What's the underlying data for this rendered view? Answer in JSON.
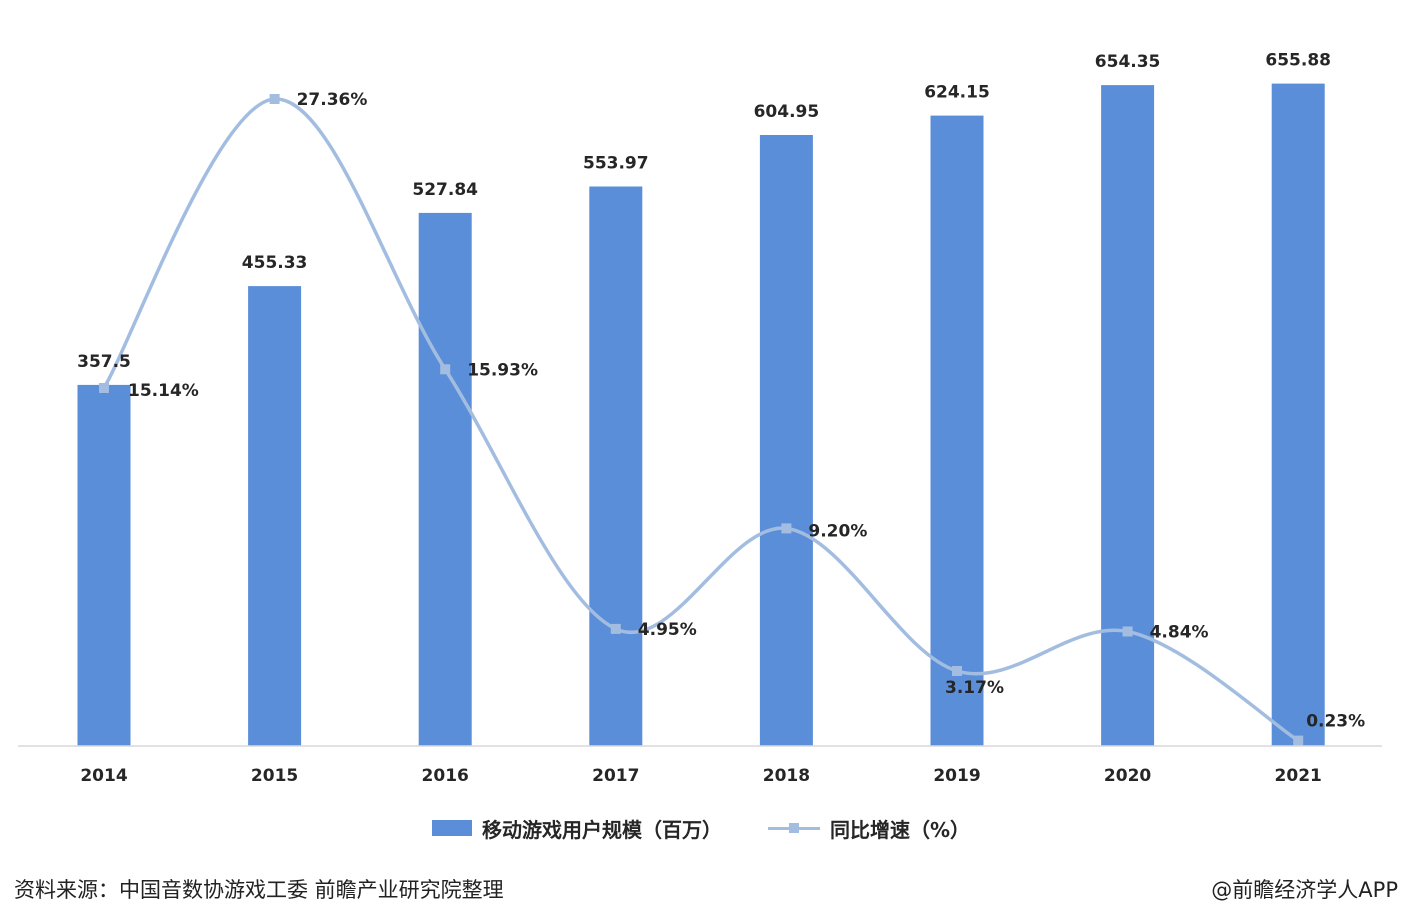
{
  "chart_data": {
    "type": "bar",
    "categories": [
      "2014",
      "2015",
      "2016",
      "2017",
      "2018",
      "2019",
      "2020",
      "2021"
    ],
    "series": [
      {
        "name": "移动游戏用户规模（百万）",
        "type": "bar",
        "axis": "left",
        "values": [
          357.5,
          455.33,
          527.84,
          553.97,
          604.95,
          624.15,
          654.35,
          655.88
        ],
        "labels": [
          "357.5",
          "455.33",
          "527.84",
          "553.97",
          "604.95",
          "624.15",
          "654.35",
          "655.88"
        ],
        "color": "#5b8ed8"
      },
      {
        "name": "同比增速（%）",
        "type": "line",
        "axis": "right",
        "values": [
          15.14,
          27.36,
          15.93,
          4.95,
          9.2,
          3.17,
          4.84,
          0.23
        ],
        "labels": [
          "15.14%",
          "27.36%",
          "15.93%",
          "4.95%",
          "9.20%",
          "3.17%",
          "4.84%",
          "0.23%"
        ],
        "color": "#a3bde1"
      }
    ],
    "ylim_left": [
      0,
      700
    ],
    "ylim_right": [
      0,
      28
    ],
    "grid": false,
    "legend_position": "bottom"
  },
  "legend": {
    "bar_label": "移动游戏用户规模（百万）",
    "line_label": "同比增速（%）"
  },
  "footer": {
    "source": "资料来源：中国音数协游戏工委 前瞻产业研究院整理",
    "credit": "@前瞻经济学人APP"
  }
}
